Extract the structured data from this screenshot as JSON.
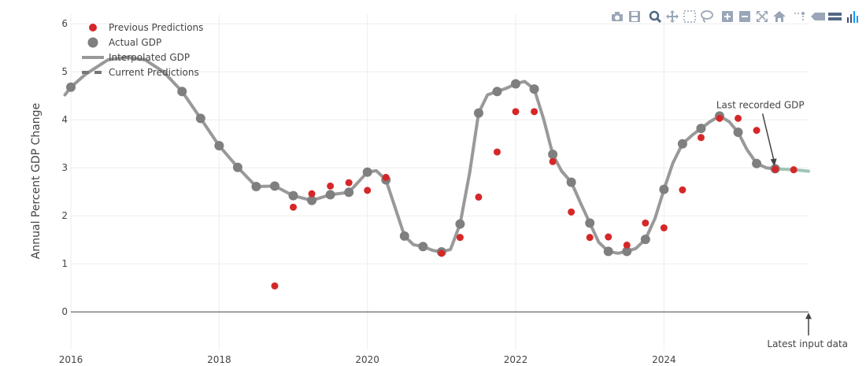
{
  "chart_data": {
    "type": "scatter",
    "title": "",
    "xlabel": "",
    "ylabel": "Annual Percent GDP Change",
    "xlim": [
      2016.0,
      2025.95
    ],
    "ylim": [
      -0.8,
      6.2
    ],
    "x_ticks": [
      2016,
      2018,
      2020,
      2022,
      2024
    ],
    "x_tick_labels": [
      "2016",
      "2018",
      "2020",
      "2022",
      "2024"
    ],
    "y_ticks": [
      0,
      1,
      2,
      3,
      4,
      5,
      6
    ],
    "y_tick_labels": [
      "0",
      "1",
      "2",
      "3",
      "4",
      "5",
      "6"
    ],
    "grid": true,
    "legend_position": "top-left",
    "legend": [
      {
        "label": "Previous Predictions",
        "kind": "marker",
        "color": "#d62728"
      },
      {
        "label": "Actual GDP",
        "kind": "marker",
        "color": "#7f7f7f"
      },
      {
        "label": "Interpolated GDP",
        "kind": "line",
        "color": "#999999"
      },
      {
        "label": "Current Predictions",
        "kind": "dash",
        "color": "#777777"
      }
    ],
    "series": [
      {
        "name": "Previous Predictions",
        "color": "#d62728",
        "points": [
          [
            2018.75,
            0.54
          ],
          [
            2019.0,
            2.18
          ],
          [
            2019.25,
            2.46
          ],
          [
            2019.5,
            2.62
          ],
          [
            2019.75,
            2.69
          ],
          [
            2020.0,
            2.53
          ],
          [
            2020.25,
            2.8
          ],
          [
            2021.0,
            1.22
          ],
          [
            2021.25,
            1.55
          ],
          [
            2021.5,
            2.39
          ],
          [
            2021.75,
            3.33
          ],
          [
            2022.0,
            4.17
          ],
          [
            2022.25,
            4.17
          ],
          [
            2022.5,
            3.13
          ],
          [
            2022.75,
            2.08
          ],
          [
            2023.0,
            1.55
          ],
          [
            2023.25,
            1.56
          ],
          [
            2023.5,
            1.39
          ],
          [
            2023.75,
            1.85
          ],
          [
            2024.0,
            1.75
          ],
          [
            2024.25,
            2.54
          ],
          [
            2024.5,
            3.63
          ],
          [
            2024.75,
            4.03
          ],
          [
            2025.0,
            4.03
          ],
          [
            2025.25,
            3.78
          ],
          [
            2025.5,
            2.97
          ],
          [
            2025.75,
            2.96
          ]
        ]
      },
      {
        "name": "Actual GDP",
        "color": "#7f7f7f",
        "points": [
          [
            2016.0,
            4.68
          ],
          [
            2017.5,
            4.59
          ],
          [
            2017.75,
            4.03
          ],
          [
            2018.0,
            3.46
          ],
          [
            2018.25,
            3.01
          ],
          [
            2018.5,
            2.61
          ],
          [
            2018.75,
            2.62
          ],
          [
            2019.0,
            2.42
          ],
          [
            2019.25,
            2.32
          ],
          [
            2019.5,
            2.44
          ],
          [
            2019.75,
            2.49
          ],
          [
            2020.0,
            2.91
          ],
          [
            2020.25,
            2.75
          ],
          [
            2020.5,
            1.58
          ],
          [
            2020.75,
            1.36
          ],
          [
            2021.0,
            1.25
          ],
          [
            2021.25,
            1.83
          ],
          [
            2021.5,
            4.14
          ],
          [
            2021.75,
            4.59
          ],
          [
            2022.0,
            4.75
          ],
          [
            2022.25,
            4.64
          ],
          [
            2022.5,
            3.28
          ],
          [
            2022.75,
            2.7
          ],
          [
            2023.0,
            1.85
          ],
          [
            2023.25,
            1.26
          ],
          [
            2023.5,
            1.26
          ],
          [
            2023.75,
            1.51
          ],
          [
            2024.0,
            2.55
          ],
          [
            2024.25,
            3.5
          ],
          [
            2024.5,
            3.82
          ],
          [
            2024.75,
            4.08
          ],
          [
            2025.0,
            3.74
          ],
          [
            2025.25,
            3.09
          ],
          [
            2025.5,
            2.98
          ]
        ]
      },
      {
        "name": "Interpolated GDP",
        "color": "#999999",
        "points": [
          [
            2015.92,
            4.52
          ],
          [
            2016.0,
            4.68
          ],
          [
            2016.2,
            4.95
          ],
          [
            2016.5,
            5.25
          ],
          [
            2016.75,
            5.3
          ],
          [
            2017.0,
            5.25
          ],
          [
            2017.25,
            5.0
          ],
          [
            2017.5,
            4.59
          ],
          [
            2017.75,
            4.03
          ],
          [
            2018.0,
            3.46
          ],
          [
            2018.25,
            3.01
          ],
          [
            2018.5,
            2.61
          ],
          [
            2018.75,
            2.62
          ],
          [
            2019.0,
            2.42
          ],
          [
            2019.25,
            2.32
          ],
          [
            2019.5,
            2.44
          ],
          [
            2019.75,
            2.49
          ],
          [
            2020.0,
            2.91
          ],
          [
            2020.12,
            2.94
          ],
          [
            2020.25,
            2.75
          ],
          [
            2020.5,
            1.58
          ],
          [
            2020.62,
            1.4
          ],
          [
            2020.75,
            1.36
          ],
          [
            2020.88,
            1.28
          ],
          [
            2021.0,
            1.25
          ],
          [
            2021.12,
            1.3
          ],
          [
            2021.25,
            1.83
          ],
          [
            2021.38,
            2.9
          ],
          [
            2021.5,
            4.14
          ],
          [
            2021.62,
            4.52
          ],
          [
            2021.75,
            4.59
          ],
          [
            2021.88,
            4.66
          ],
          [
            2022.0,
            4.75
          ],
          [
            2022.12,
            4.8
          ],
          [
            2022.25,
            4.64
          ],
          [
            2022.38,
            4.0
          ],
          [
            2022.5,
            3.28
          ],
          [
            2022.62,
            2.93
          ],
          [
            2022.75,
            2.7
          ],
          [
            2022.88,
            2.25
          ],
          [
            2023.0,
            1.85
          ],
          [
            2023.12,
            1.45
          ],
          [
            2023.25,
            1.26
          ],
          [
            2023.38,
            1.22
          ],
          [
            2023.5,
            1.26
          ],
          [
            2023.62,
            1.32
          ],
          [
            2023.75,
            1.51
          ],
          [
            2023.88,
            1.95
          ],
          [
            2024.0,
            2.55
          ],
          [
            2024.12,
            3.1
          ],
          [
            2024.25,
            3.5
          ],
          [
            2024.38,
            3.68
          ],
          [
            2024.5,
            3.82
          ],
          [
            2024.62,
            3.96
          ],
          [
            2024.75,
            4.08
          ],
          [
            2024.88,
            3.96
          ],
          [
            2025.0,
            3.74
          ],
          [
            2025.12,
            3.38
          ],
          [
            2025.25,
            3.09
          ],
          [
            2025.38,
            3.0
          ],
          [
            2025.5,
            2.98
          ]
        ]
      },
      {
        "name": "Current Predictions",
        "color": "#9fc5b6",
        "points": [
          [
            2025.5,
            2.98
          ],
          [
            2025.75,
            2.96
          ],
          [
            2025.95,
            2.93
          ]
        ]
      }
    ],
    "annotations": [
      {
        "text": "Last recorded GDP",
        "x": 2025.5,
        "y": 2.98
      },
      {
        "text": "Latest input data",
        "x": 2025.95,
        "y": 0
      }
    ]
  },
  "colors": {
    "grid": "#eeeeee",
    "zero_line": "#444444",
    "modebar_icon": "#9aa6b7",
    "modebar_active": "#506784"
  },
  "modebar": [
    {
      "name": "camera-icon"
    },
    {
      "name": "save-icon"
    },
    {
      "name": "zoom-icon"
    },
    {
      "name": "pan-icon"
    },
    {
      "name": "box-select-icon"
    },
    {
      "name": "lasso-icon"
    },
    {
      "name": "zoom-in-icon"
    },
    {
      "name": "zoom-out-icon"
    },
    {
      "name": "autoscale-icon"
    },
    {
      "name": "home-icon"
    },
    {
      "name": "spike-lines-icon"
    },
    {
      "name": "hover-closest-icon"
    },
    {
      "name": "hover-compare-icon"
    },
    {
      "name": "plotly-logo-icon"
    }
  ]
}
